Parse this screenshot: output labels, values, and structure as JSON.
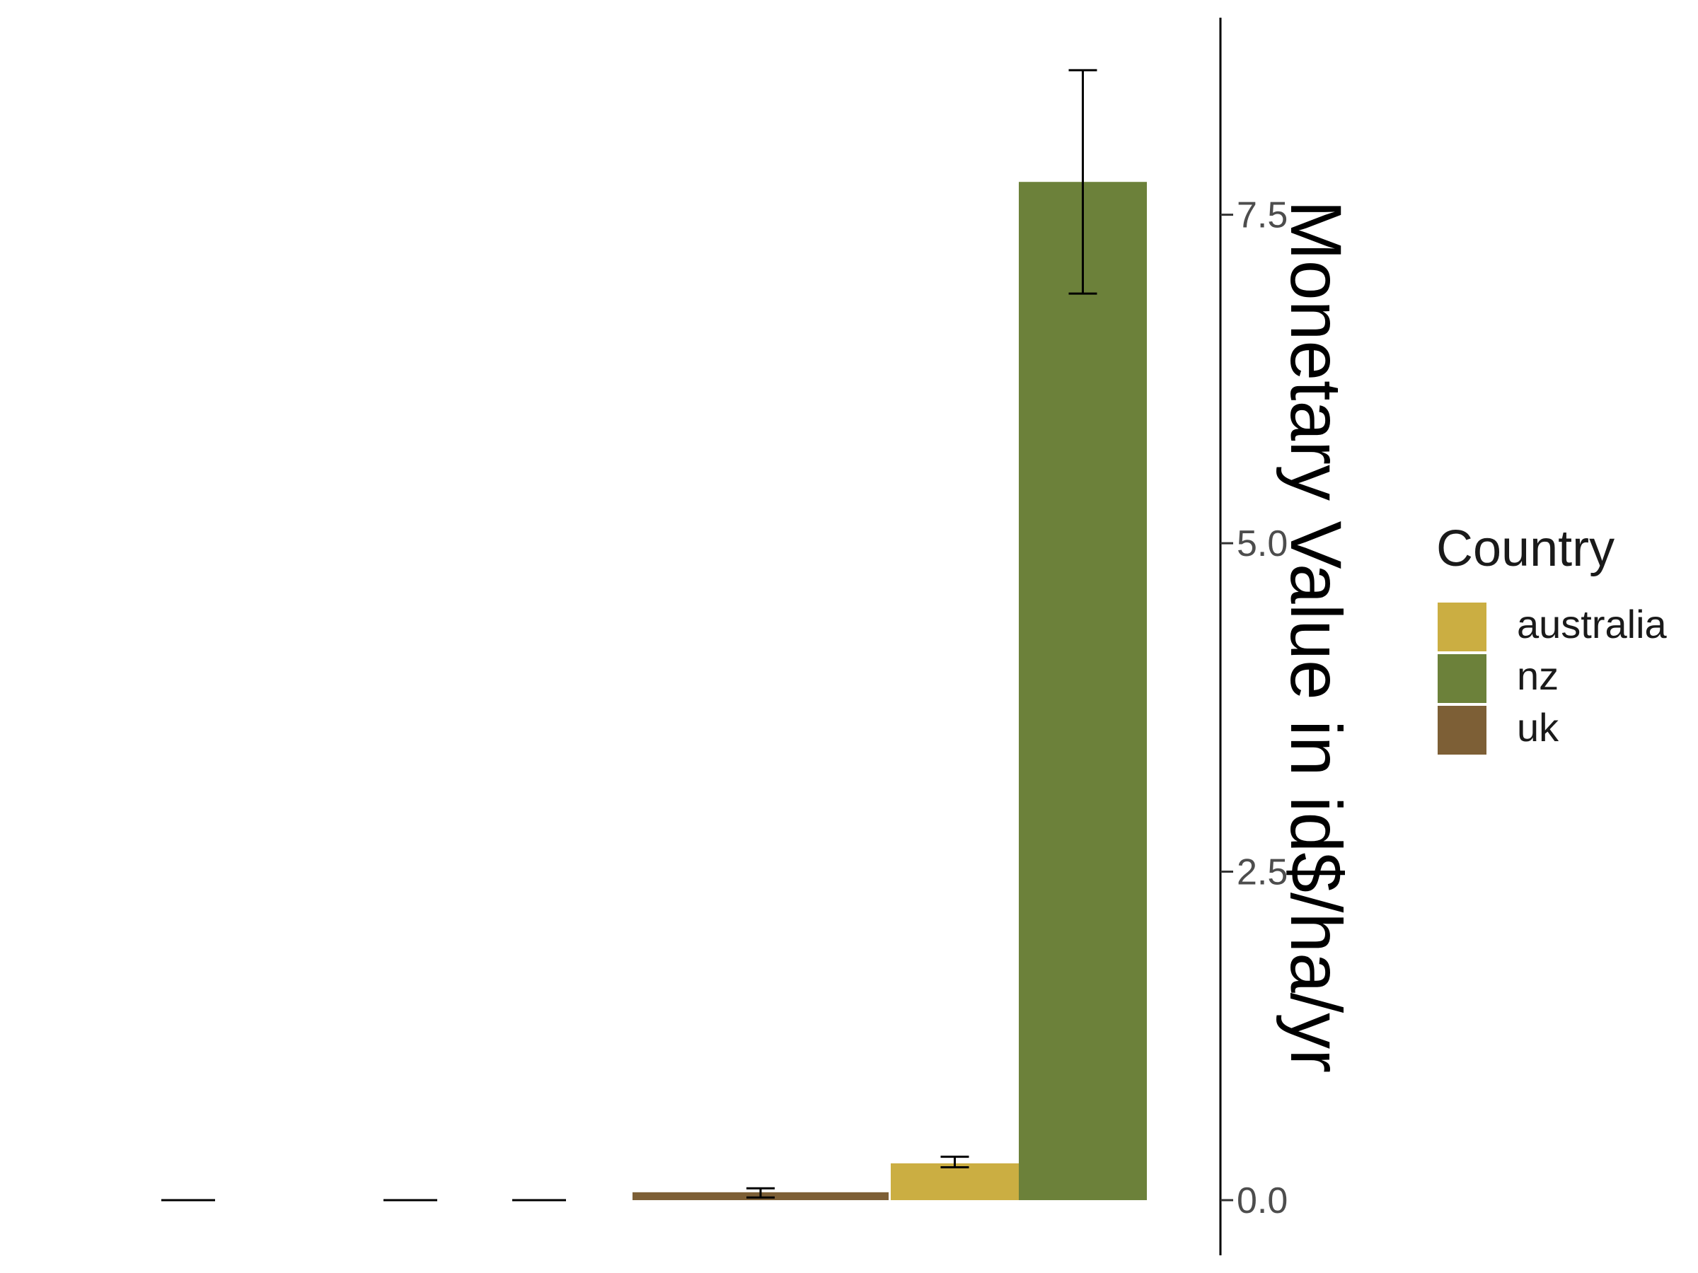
{
  "chart_data": {
    "type": "bar",
    "ylabel": "Monetary Value in id$/ha/yr",
    "y_axis_position": "right",
    "ylim": [
      -0.42,
      9.0
    ],
    "yticks": [
      "0.0",
      "2.5",
      "5.0",
      "7.5"
    ],
    "ytick_values": [
      0.0,
      2.5,
      5.0,
      7.5
    ],
    "legend": {
      "title": "Country",
      "placement": "right",
      "entries": [
        {
          "label": "australia",
          "color": "#CBAE42"
        },
        {
          "label": "nz",
          "color": "#6C813A"
        },
        {
          "label": "uk",
          "color": "#7D5F36"
        }
      ]
    },
    "groups": [
      {
        "bars": [
          {
            "series": "uk",
            "value": 0.0,
            "err_low": 0.0,
            "err_high": 0.0
          }
        ]
      },
      {
        "bars": [
          {
            "series": "uk",
            "value": 0.0,
            "err_low": 0.0,
            "err_high": 0.0
          }
        ]
      },
      {
        "bars": [
          {
            "series": "uk",
            "value": 0.0,
            "err_low": 0.0,
            "err_high": 0.0
          }
        ]
      },
      {
        "bars": [
          {
            "series": "uk",
            "value": 0.06,
            "err_low": 0.02,
            "err_high": 0.09
          }
        ]
      },
      {
        "bars": [
          {
            "series": "australia",
            "value": 0.28,
            "err_low": 0.25,
            "err_high": 0.33
          },
          {
            "series": "nz",
            "value": 7.75,
            "err_low": 6.9,
            "err_high": 8.6
          }
        ]
      }
    ]
  }
}
